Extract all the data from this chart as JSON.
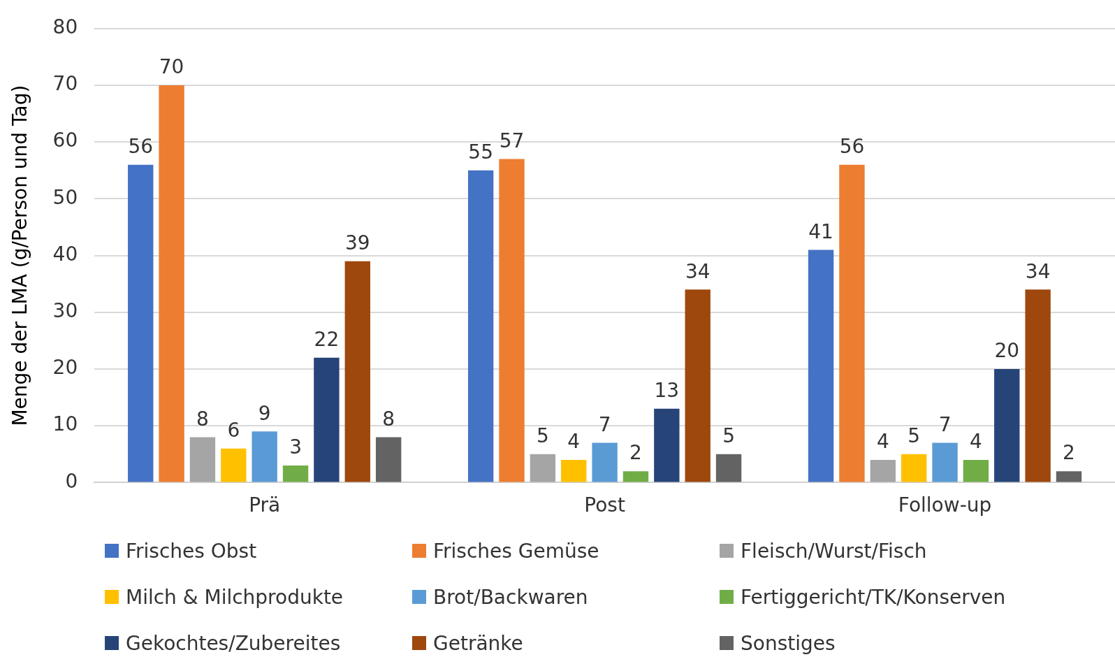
{
  "chart_data": {
    "type": "bar",
    "ylabel": "Menge der LMA (g/Person und Tag)",
    "categories": [
      "Prä",
      "Post",
      "Follow-up"
    ],
    "series": [
      {
        "name": "Frisches Obst",
        "color": "#4472c4",
        "values": [
          56,
          55,
          41
        ]
      },
      {
        "name": "Frisches Gemüse",
        "color": "#ed7d31",
        "values": [
          70,
          57,
          56
        ]
      },
      {
        "name": "Fleisch/Wurst/Fisch",
        "color": "#a5a5a5",
        "values": [
          8,
          5,
          4
        ]
      },
      {
        "name": "Milch & Milchprodukte",
        "color": "#ffc000",
        "values": [
          6,
          4,
          5
        ]
      },
      {
        "name": "Brot/Backwaren",
        "color": "#5b9bd5",
        "values": [
          9,
          7,
          7
        ]
      },
      {
        "name": "Fertiggericht/TK/Konserven",
        "color": "#70ad47",
        "values": [
          3,
          2,
          4
        ]
      },
      {
        "name": "Gekochtes/Zubereites",
        "color": "#264478",
        "values": [
          22,
          13,
          20
        ]
      },
      {
        "name": "Getränke",
        "color": "#9e480e",
        "values": [
          39,
          34,
          34
        ]
      },
      {
        "name": "Sonstiges",
        "color": "#636363",
        "values": [
          8,
          5,
          2
        ]
      }
    ],
    "ylim": [
      0,
      80
    ],
    "yticks": [
      0,
      10,
      20,
      30,
      40,
      50,
      60,
      70,
      80
    ],
    "grid": "y",
    "legend": "bottom",
    "data_labels": true
  }
}
